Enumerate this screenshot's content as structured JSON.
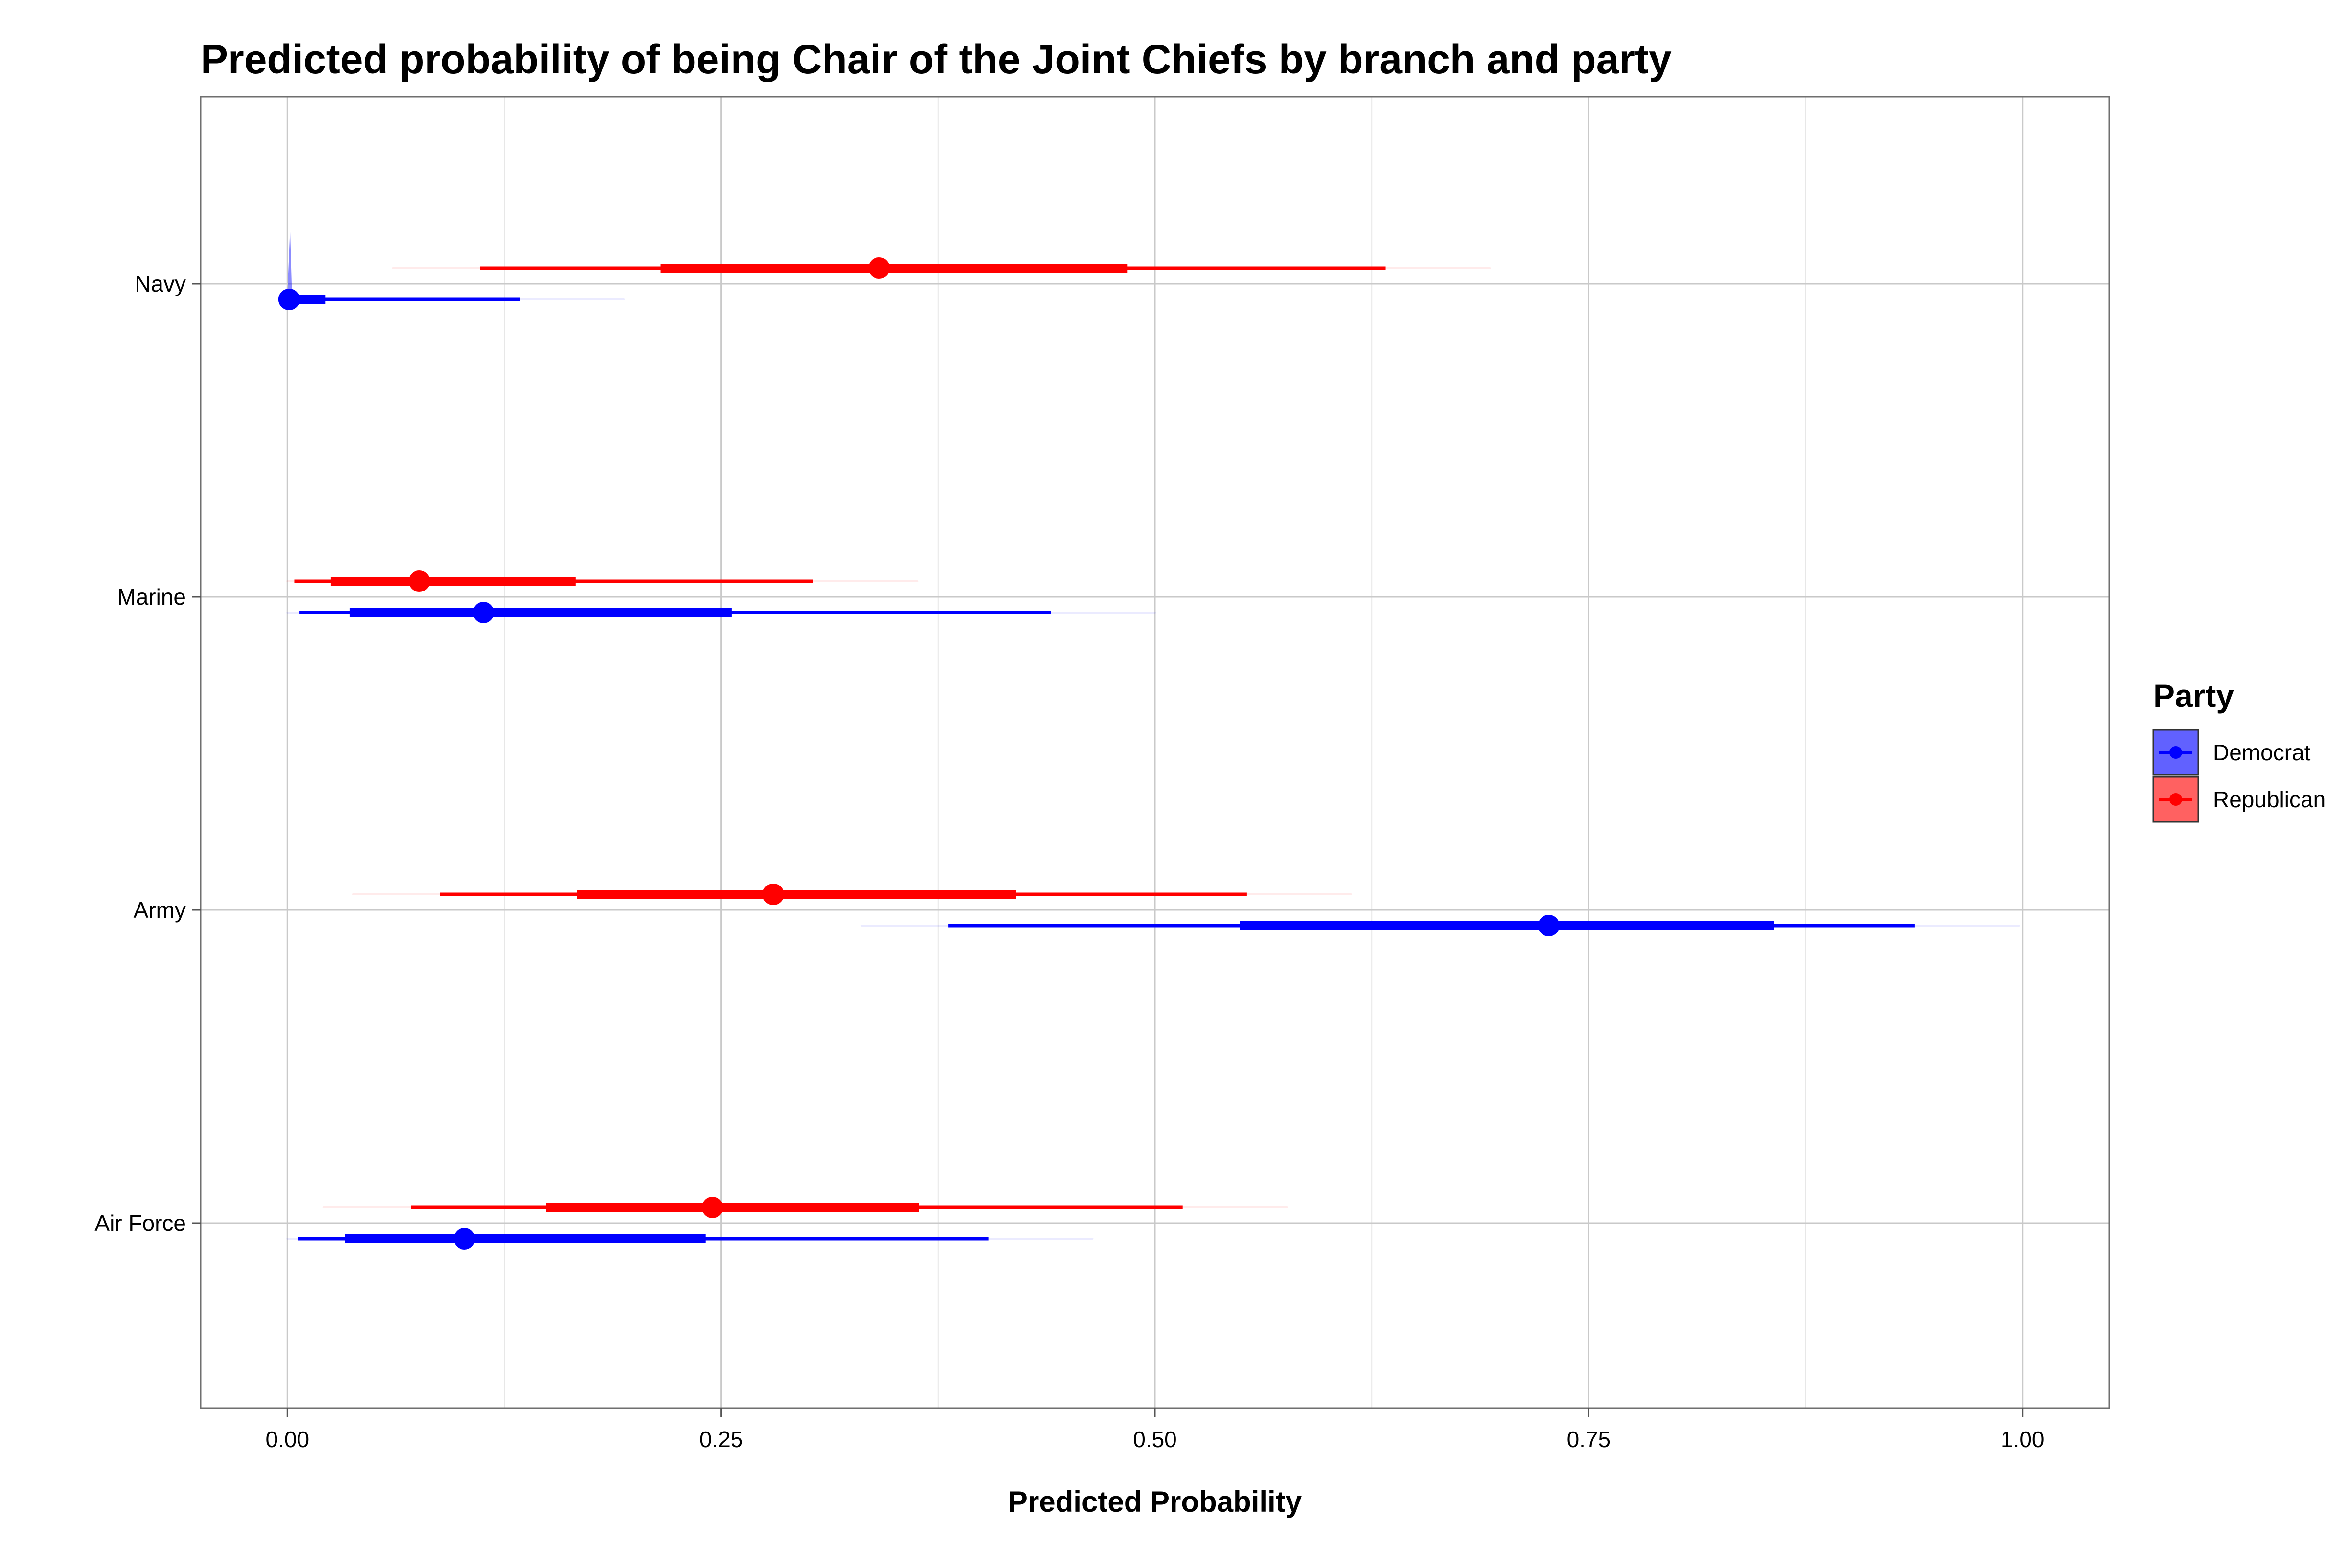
{
  "chart_data": {
    "type": "interval",
    "title": "Predicted probability of being Chair of the Joint Chiefs by branch and party",
    "xlabel": "Predicted Probability",
    "ylabel": "",
    "xlim": [
      -0.05,
      1.05
    ],
    "x_ticks": [
      "0.00",
      "0.25",
      "0.50",
      "0.75",
      "1.00"
    ],
    "x_tick_values": [
      0,
      0.25,
      0.5,
      0.75,
      1.0
    ],
    "categories": [
      "Navy",
      "Marine",
      "Army",
      "Air Force"
    ],
    "grid": true,
    "legend": {
      "title": "Party",
      "placement": "right"
    },
    "series": [
      {
        "name": "Democrat",
        "color": "#0000FF",
        "values": [
          {
            "category": "Navy",
            "median": 0.001,
            "lo66": 0.0,
            "hi66": 0.022,
            "lo95": 0.0,
            "hi95": 0.134
          },
          {
            "category": "Marine",
            "median": 0.113,
            "lo66": 0.036,
            "hi66": 0.256,
            "lo95": 0.007,
            "hi95": 0.44
          },
          {
            "category": "Army",
            "median": 0.727,
            "lo66": 0.549,
            "hi66": 0.857,
            "lo95": 0.381,
            "hi95": 0.938
          },
          {
            "category": "Air Force",
            "median": 0.102,
            "lo66": 0.033,
            "hi66": 0.241,
            "lo95": 0.006,
            "hi95": 0.404
          }
        ]
      },
      {
        "name": "Republican",
        "color": "#FF0000",
        "values": [
          {
            "category": "Navy",
            "median": 0.341,
            "lo66": 0.215,
            "hi66": 0.484,
            "lo95": 0.111,
            "hi95": 0.633
          },
          {
            "category": "Marine",
            "median": 0.076,
            "lo66": 0.025,
            "hi66": 0.166,
            "lo95": 0.004,
            "hi95": 0.303
          },
          {
            "category": "Army",
            "median": 0.28,
            "lo66": 0.167,
            "hi66": 0.42,
            "lo95": 0.088,
            "hi95": 0.553
          },
          {
            "category": "Air Force",
            "median": 0.245,
            "lo66": 0.149,
            "hi66": 0.364,
            "lo95": 0.071,
            "hi95": 0.516
          }
        ]
      }
    ]
  }
}
